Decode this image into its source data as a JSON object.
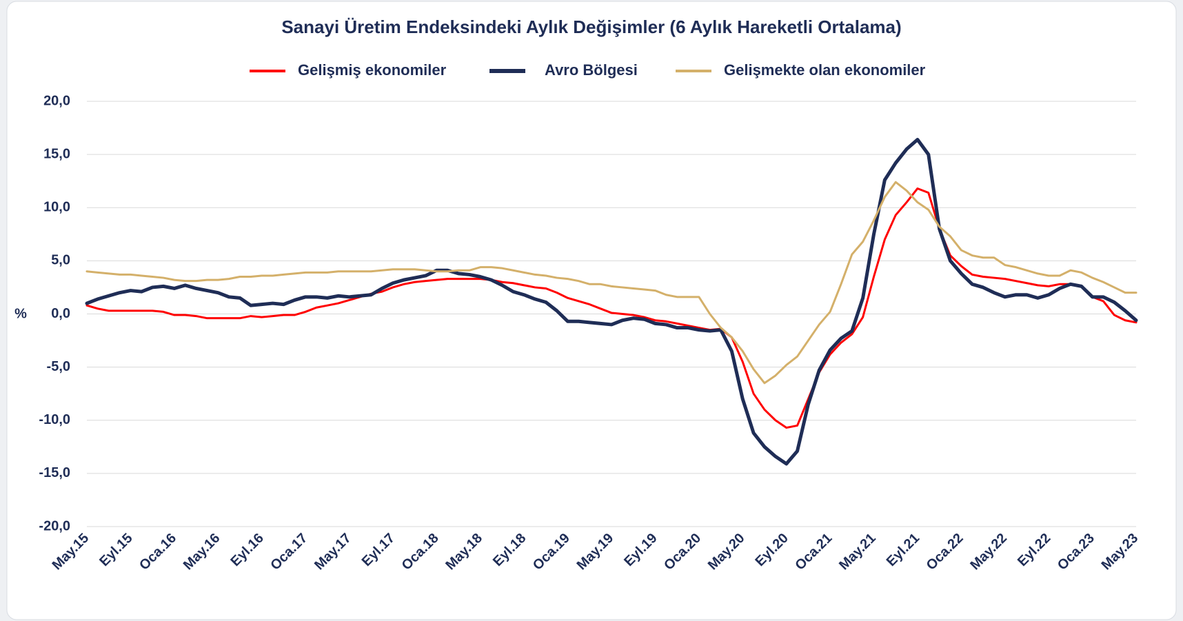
{
  "chart_data": {
    "type": "line",
    "title": "Sanayi Üretim Endeksindeki Aylık Değişimler (6 Aylık Hareketli Ortalama)",
    "y_label": "%",
    "categories": [
      "May.15",
      null,
      null,
      null,
      "Eyl.15",
      null,
      null,
      null,
      "Oca.16",
      null,
      null,
      null,
      "May.16",
      null,
      null,
      null,
      "Eyl.16",
      null,
      null,
      null,
      "Oca.17",
      null,
      null,
      null,
      "May.17",
      null,
      null,
      null,
      "Eyl.17",
      null,
      null,
      null,
      "Oca.18",
      null,
      null,
      null,
      "May.18",
      null,
      null,
      null,
      "Eyl.18",
      null,
      null,
      null,
      "Oca.19",
      null,
      null,
      null,
      "May.19",
      null,
      null,
      null,
      "Eyl.19",
      null,
      null,
      null,
      "Oca.20",
      null,
      null,
      null,
      "May.20",
      null,
      null,
      null,
      "Eyl.20",
      null,
      null,
      null,
      "Oca.21",
      null,
      null,
      null,
      "May.21",
      null,
      null,
      null,
      "Eyl.21",
      null,
      null,
      null,
      "Oca.22",
      null,
      null,
      null,
      "May.22",
      null,
      null,
      null,
      "Eyl.22",
      null,
      null,
      null,
      "Oca.23",
      null,
      null,
      null,
      "May.23"
    ],
    "series": [
      {
        "name": "Gelişmiş ekonomiler",
        "color": "#ff0000",
        "width": 3,
        "values": [
          0.8,
          0.5,
          0.3,
          0.3,
          0.3,
          0.3,
          0.3,
          0.2,
          -0.1,
          -0.1,
          -0.2,
          -0.4,
          -0.4,
          -0.4,
          -0.4,
          -0.2,
          -0.3,
          -0.2,
          -0.1,
          -0.1,
          0.2,
          0.6,
          0.8,
          1.0,
          1.3,
          1.6,
          1.9,
          2.1,
          2.5,
          2.8,
          3.0,
          3.1,
          3.2,
          3.3,
          3.3,
          3.3,
          3.3,
          3.2,
          3.0,
          2.9,
          2.7,
          2.5,
          2.4,
          2.0,
          1.5,
          1.2,
          0.9,
          0.5,
          0.1,
          0.0,
          -0.1,
          -0.3,
          -0.6,
          -0.7,
          -0.9,
          -1.1,
          -1.3,
          -1.5,
          -1.4,
          -2.2,
          -4.5,
          -7.5,
          -9.0,
          -10.0,
          -10.7,
          -10.5,
          -8.0,
          -5.5,
          -3.8,
          -2.7,
          -1.9,
          -0.3,
          3.5,
          7.0,
          9.3,
          10.5,
          11.8,
          11.4,
          8.0,
          5.5,
          4.5,
          3.7,
          3.5,
          3.4,
          3.3,
          3.1,
          2.9,
          2.7,
          2.6,
          2.8,
          2.8,
          2.6,
          1.6,
          1.2,
          -0.1,
          -0.6,
          -0.8
        ]
      },
      {
        "name": "Avro Bölgesi",
        "color": "#1f2d56",
        "width": 5,
        "values": [
          1.0,
          1.4,
          1.7,
          2.0,
          2.2,
          2.1,
          2.5,
          2.6,
          2.4,
          2.7,
          2.4,
          2.2,
          2.0,
          1.6,
          1.5,
          0.8,
          0.9,
          1.0,
          0.9,
          1.3,
          1.6,
          1.6,
          1.5,
          1.7,
          1.6,
          1.7,
          1.8,
          2.4,
          2.9,
          3.2,
          3.4,
          3.6,
          4.1,
          4.1,
          3.8,
          3.7,
          3.5,
          3.2,
          2.7,
          2.1,
          1.8,
          1.4,
          1.1,
          0.3,
          -0.7,
          -0.7,
          -0.8,
          -0.9,
          -1.0,
          -0.6,
          -0.4,
          -0.5,
          -0.9,
          -1.0,
          -1.3,
          -1.3,
          -1.5,
          -1.6,
          -1.5,
          -3.5,
          -8.0,
          -11.2,
          -12.5,
          -13.4,
          -14.1,
          -12.9,
          -8.5,
          -5.3,
          -3.4,
          -2.3,
          -1.6,
          1.5,
          7.5,
          12.6,
          14.2,
          15.5,
          16.4,
          15.0,
          8.0,
          5.0,
          3.8,
          2.8,
          2.5,
          2.0,
          1.6,
          1.8,
          1.8,
          1.5,
          1.8,
          2.4,
          2.8,
          2.6,
          1.6,
          1.6,
          1.1,
          0.3,
          -0.6
        ]
      },
      {
        "name": "Gelişmekte olan ekonomiler",
        "color": "#d4b06a",
        "width": 3,
        "values": [
          4.0,
          3.9,
          3.8,
          3.7,
          3.7,
          3.6,
          3.5,
          3.4,
          3.2,
          3.1,
          3.1,
          3.2,
          3.2,
          3.3,
          3.5,
          3.5,
          3.6,
          3.6,
          3.7,
          3.8,
          3.9,
          3.9,
          3.9,
          4.0,
          4.0,
          4.0,
          4.0,
          4.1,
          4.2,
          4.2,
          4.2,
          4.1,
          4.0,
          4.0,
          4.1,
          4.1,
          4.4,
          4.4,
          4.3,
          4.1,
          3.9,
          3.7,
          3.6,
          3.4,
          3.3,
          3.1,
          2.8,
          2.8,
          2.6,
          2.5,
          2.4,
          2.3,
          2.2,
          1.8,
          1.6,
          1.6,
          1.6,
          0.0,
          -1.3,
          -2.2,
          -3.5,
          -5.2,
          -6.5,
          -5.8,
          -4.8,
          -4.0,
          -2.5,
          -1.0,
          0.2,
          2.8,
          5.6,
          6.8,
          8.8,
          11.0,
          12.4,
          11.6,
          10.5,
          9.8,
          8.2,
          7.3,
          6.0,
          5.5,
          5.3,
          5.3,
          4.6,
          4.4,
          4.1,
          3.8,
          3.6,
          3.6,
          4.1,
          3.9,
          3.4,
          3.0,
          2.5,
          2.0,
          2.0
        ]
      }
    ],
    "ylim": [
      -20,
      20
    ],
    "yticks": [
      {
        "value": -20,
        "label": "-20,0"
      },
      {
        "value": -15,
        "label": "-15,0"
      },
      {
        "value": -10,
        "label": "-10,0"
      },
      {
        "value": -5,
        "label": "-5,0"
      },
      {
        "value": 0,
        "label": "0,0"
      },
      {
        "value": 5,
        "label": "5,0"
      },
      {
        "value": 10,
        "label": "10,0"
      },
      {
        "value": 15,
        "label": "15,0"
      },
      {
        "value": 20,
        "label": "20,0"
      }
    ],
    "grid": true,
    "legend": "top"
  }
}
